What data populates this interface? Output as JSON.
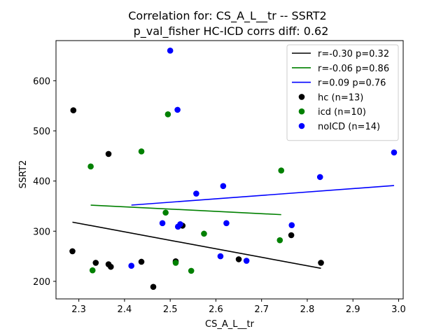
{
  "chart_data": {
    "type": "scatter",
    "title": "Correlation for: CS_A_L__tr -- SSRT2",
    "subtitle": "p_val_fisher HC-ICD corrs diff: 0.62",
    "xlabel": "CS_A_L__tr",
    "ylabel": "SSRT2",
    "xlim": [
      2.25,
      3.01
    ],
    "ylim": [
      165,
      680
    ],
    "xticks": [
      2.3,
      2.4,
      2.5,
      2.6,
      2.7,
      2.8,
      2.9,
      3.0
    ],
    "xtick_labels": [
      "2.3",
      "2.4",
      "2.5",
      "2.6",
      "2.7",
      "2.8",
      "2.9",
      "3.0"
    ],
    "yticks": [
      200,
      300,
      400,
      500,
      600
    ],
    "ytick_labels": [
      "200",
      "300",
      "400",
      "500",
      "600"
    ],
    "grid": false,
    "legend_position": "top-right",
    "series": [
      {
        "name": "hc (n=13)",
        "color": "#000000",
        "points": [
          {
            "x": 2.288,
            "y": 541
          },
          {
            "x": 2.286,
            "y": 260
          },
          {
            "x": 2.337,
            "y": 237
          },
          {
            "x": 2.365,
            "y": 234
          },
          {
            "x": 2.37,
            "y": 229
          },
          {
            "x": 2.365,
            "y": 454
          },
          {
            "x": 2.437,
            "y": 239
          },
          {
            "x": 2.463,
            "y": 189
          },
          {
            "x": 2.512,
            "y": 240
          },
          {
            "x": 2.527,
            "y": 311
          },
          {
            "x": 2.65,
            "y": 244
          },
          {
            "x": 2.765,
            "y": 292
          },
          {
            "x": 2.83,
            "y": 237
          }
        ],
        "fit": {
          "label": "r=-0.30 p=0.32",
          "x": [
            2.286,
            2.83
          ],
          "y": [
            318,
            226
          ]
        }
      },
      {
        "name": "icd (n=10)",
        "color": "#008000",
        "points": [
          {
            "x": 2.326,
            "y": 429
          },
          {
            "x": 2.33,
            "y": 222
          },
          {
            "x": 2.437,
            "y": 459
          },
          {
            "x": 2.49,
            "y": 337
          },
          {
            "x": 2.495,
            "y": 533
          },
          {
            "x": 2.512,
            "y": 237
          },
          {
            "x": 2.546,
            "y": 221
          },
          {
            "x": 2.574,
            "y": 295
          },
          {
            "x": 2.74,
            "y": 282
          },
          {
            "x": 2.743,
            "y": 421
          }
        ],
        "fit": {
          "label": "r=-0.06 p=0.86",
          "x": [
            2.326,
            2.743
          ],
          "y": [
            352,
            333
          ]
        }
      },
      {
        "name": "noICD (n=14)",
        "color": "#0000ff",
        "points": [
          {
            "x": 2.415,
            "y": 231
          },
          {
            "x": 2.483,
            "y": 316
          },
          {
            "x": 2.5,
            "y": 660
          },
          {
            "x": 2.516,
            "y": 542
          },
          {
            "x": 2.517,
            "y": 309
          },
          {
            "x": 2.522,
            "y": 314
          },
          {
            "x": 2.557,
            "y": 375
          },
          {
            "x": 2.61,
            "y": 250
          },
          {
            "x": 2.616,
            "y": 390
          },
          {
            "x": 2.623,
            "y": 316
          },
          {
            "x": 2.667,
            "y": 241
          },
          {
            "x": 2.766,
            "y": 312
          },
          {
            "x": 2.828,
            "y": 408
          },
          {
            "x": 2.99,
            "y": 457
          }
        ],
        "fit": {
          "label": "r=0.09 p=0.76",
          "x": [
            2.415,
            2.99
          ],
          "y": [
            352,
            391
          ]
        }
      }
    ]
  }
}
